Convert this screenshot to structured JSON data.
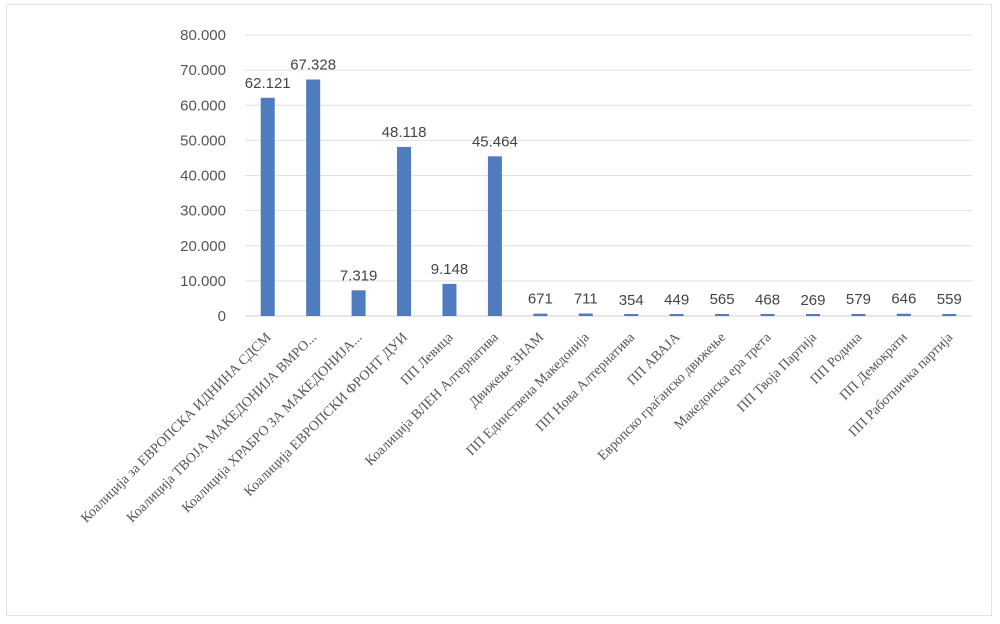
{
  "chart_data": {
    "type": "bar",
    "title": "",
    "xlabel": "",
    "ylabel": "",
    "ylim": [
      0,
      80000
    ],
    "yticks": [
      0,
      10000,
      20000,
      30000,
      40000,
      50000,
      60000,
      70000,
      80000
    ],
    "ytick_labels": [
      "0",
      "10.000",
      "20.000",
      "30.000",
      "40.000",
      "50.000",
      "60.000",
      "70.000",
      "80.000"
    ],
    "grid": true,
    "legend": "none",
    "bar_color": "#4f7bbf",
    "categories": [
      "Коалиција за ЕВРОПСКА ИДНИНА СДСМ",
      "Коалиција ТВОЈА МАКЕДОНИЈА ВМРО...",
      "Коалиција ХРАБРО ЗА МАКЕДОНИЈА...",
      "Коалиција ЕВРОПСКИ ФРОНТ ДУИ",
      "ПП Левица",
      "Коалиција ВЛЕН Алтернатива",
      "Движење ЗНАМ",
      "ПП Единствена Македонија",
      "ПП Нова Алтернатива",
      "ПП АВАЈА",
      "Европско граѓанско движење",
      "Македонска ера трета",
      "ПП Твоја Партија",
      "ПП Родина",
      "ПП Демократи",
      "ПП Работничка партија"
    ],
    "values": [
      62121,
      67328,
      7319,
      48118,
      9148,
      45464,
      671,
      711,
      354,
      449,
      565,
      468,
      269,
      579,
      646,
      559
    ],
    "data_labels": [
      "62.121",
      "67.328",
      "7.319",
      "48.118",
      "9.148",
      "45.464",
      "671",
      "711",
      "354",
      "449",
      "565",
      "468",
      "269",
      "579",
      "646",
      "559"
    ]
  }
}
